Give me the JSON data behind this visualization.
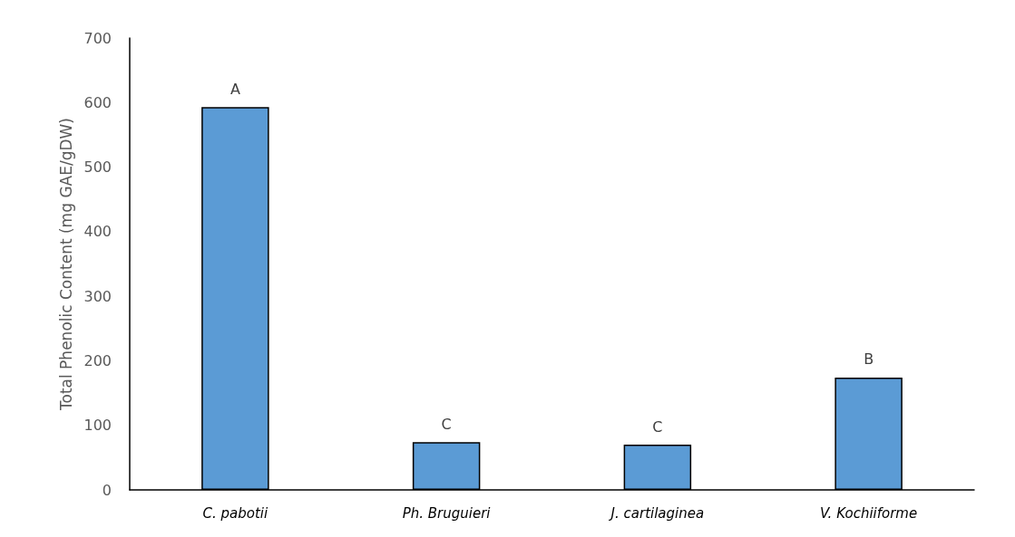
{
  "chart_data": {
    "type": "bar",
    "ylabel": "Total Phenolic Content (mg GAE/gDW)",
    "categories": [
      "C. pabotii",
      "Ph. Bruguieri",
      "J. cartilaginea",
      "V. Kochiiforme"
    ],
    "values": [
      593,
      74,
      70,
      174
    ],
    "value_labels": [
      "A",
      "C",
      "C",
      "B"
    ],
    "color": "#5b9bd5",
    "ylim": [
      0,
      700
    ],
    "yticks": [
      0,
      100,
      200,
      300,
      400,
      500,
      600,
      700
    ],
    "grid": false
  }
}
